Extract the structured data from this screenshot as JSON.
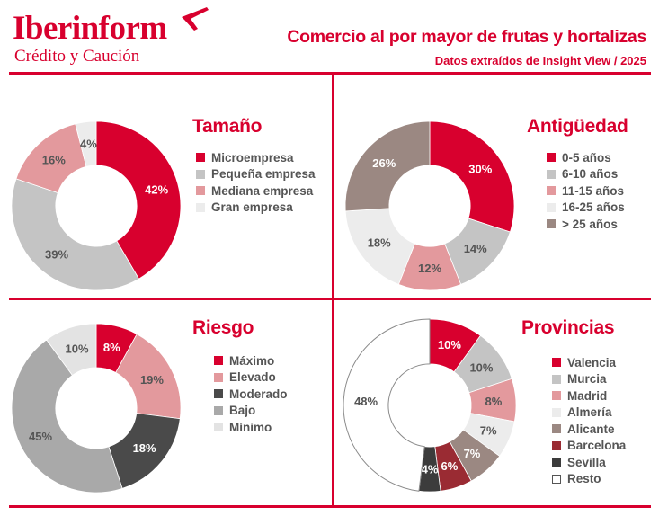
{
  "header": {
    "brand": "Iberinform",
    "brand_sub": "Crédito y Caución",
    "title": "Comercio al por mayor de frutas y hortalizas",
    "subtitle": "Datos extraídos de Insight View / 2025"
  },
  "colors": {
    "accent": "#d8002e",
    "divider": "#d8002e"
  },
  "icons": {
    "logo_mark": "plane-icon"
  },
  "chart_data": [
    {
      "type": "pie",
      "title": "Tamaño",
      "categories": [
        "Microempresa",
        "Pequeña empresa",
        "Mediana empresa",
        "Gran empresa"
      ],
      "values": [
        42,
        39,
        16,
        4
      ],
      "labels": [
        "42%",
        "39%",
        "16%",
        "4%"
      ],
      "colors": [
        "#d8002e",
        "#c4c4c4",
        "#e3999d",
        "#ececec"
      ],
      "legend": "right",
      "donut": true
    },
    {
      "type": "pie",
      "title": "Antigüedad",
      "categories": [
        "0-5 años",
        "6-10 años",
        "11-15 años",
        "16-25 años",
        "> 25 años"
      ],
      "values": [
        30,
        14,
        12,
        18,
        26
      ],
      "labels": [
        "30%",
        "14%",
        "12%",
        "18%",
        "26%"
      ],
      "colors": [
        "#d8002e",
        "#c4c4c4",
        "#e3999d",
        "#ececec",
        "#9b8882"
      ],
      "legend": "right",
      "donut": true
    },
    {
      "type": "pie",
      "title": "Riesgo",
      "categories": [
        "Máximo",
        "Elevado",
        "Moderado",
        "Bajo",
        "Mínimo"
      ],
      "values": [
        8,
        19,
        18,
        45,
        10
      ],
      "labels": [
        "8%",
        "19%",
        "18%",
        "45%",
        "10%"
      ],
      "colors": [
        "#d8002e",
        "#e3999d",
        "#4a4a4a",
        "#a9a9a9",
        "#e3e3e3"
      ],
      "legend": "right",
      "donut": true
    },
    {
      "type": "pie",
      "title": "Provincias",
      "categories": [
        "Valencia",
        "Murcia",
        "Madrid",
        "Almería",
        "Alicante",
        "Barcelona",
        "Sevilla",
        "Resto"
      ],
      "values": [
        10,
        10,
        8,
        7,
        7,
        6,
        4,
        48
      ],
      "labels": [
        "10%",
        "10%",
        "8%",
        "7%",
        "7%",
        "6%",
        "4%",
        "48%"
      ],
      "colors": [
        "#d8002e",
        "#c4c4c4",
        "#e3999d",
        "#ececec",
        "#9b8882",
        "#9a2b33",
        "#3c3c3c",
        "#ffffff"
      ],
      "legend": "right",
      "donut": true
    }
  ]
}
